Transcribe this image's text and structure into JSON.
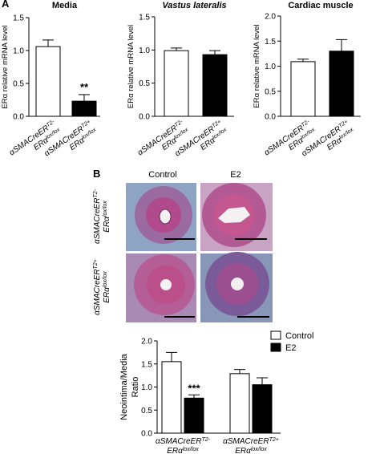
{
  "panel_labels": [
    "A",
    "B"
  ],
  "micrographs": {
    "columns": [
      "Control",
      "E2"
    ],
    "rows": [
      {
        "line1": "αSMACreER",
        "sup1": "T2-",
        "line2": "ERα",
        "sup2": "lox/lox"
      },
      {
        "line1": "αSMACreER",
        "sup1": "T2+",
        "line2": "ERα",
        "sup2": "lox/lox"
      }
    ]
  },
  "chart_data": [
    {
      "type": "bar",
      "title": "Media",
      "y_label": "ERα relative mRNA level",
      "categories": [
        {
          "line1": "αSMACreER",
          "sup1": "T2-",
          "line2": "ERα",
          "sup2": "lox/lox"
        },
        {
          "line1": "αSMACreER",
          "sup1": "T2+",
          "line2": "ERα",
          "sup2": "lox/lox"
        }
      ],
      "values": [
        1.06,
        0.23
      ],
      "errors": [
        0.1,
        0.1
      ],
      "colors": [
        "#ffffff",
        "#000000"
      ],
      "annotation": "**",
      "ylim": [
        0,
        1.5
      ],
      "yticks": [
        {
          "value": 0,
          "label": "0.0"
        },
        0.5,
        {
          "value": 1,
          "label": "1.0"
        },
        1.5
      ]
    },
    {
      "type": "bar",
      "title": "Vastus lateralis",
      "y_label": "ERα relative mRNA level",
      "categories": [
        {
          "line1": "αSMACreER",
          "sup1": "T2-",
          "line2": "ERα",
          "sup2": "lox/lox"
        },
        {
          "line1": "αSMACreER",
          "sup1": "T2+",
          "line2": "ERα",
          "sup2": "lox/lox"
        }
      ],
      "values": [
        0.99,
        0.93
      ],
      "errors": [
        0.04,
        0.06
      ],
      "colors": [
        "#ffffff",
        "#000000"
      ],
      "ylim": [
        0,
        1.5
      ],
      "yticks": [
        {
          "value": 0,
          "label": "0.0"
        },
        0.5,
        {
          "value": 1,
          "label": "1.0"
        },
        1.5
      ]
    },
    {
      "type": "bar",
      "title": "Cardiac muscle",
      "y_label": "ERα relative mRNA level",
      "categories": [
        {
          "line1": "αSMACreER",
          "sup1": "T2-",
          "line2": "ERα",
          "sup2": "lox/lox"
        },
        {
          "line1": "αSMACreER",
          "sup1": "T2+",
          "line2": "ERα",
          "sup2": "lox/lox"
        }
      ],
      "values": [
        1.09,
        1.3
      ],
      "errors": [
        0.05,
        0.23
      ],
      "colors": [
        "#ffffff",
        "#000000"
      ],
      "ylim": [
        0,
        2
      ],
      "yticks": [
        {
          "value": 0,
          "label": "0.0"
        },
        0.5,
        {
          "value": 1,
          "label": "1.0"
        },
        1.5,
        {
          "value": 2,
          "label": "2.0"
        }
      ]
    },
    {
      "type": "grouped_bar",
      "y_label": [
        "Neointima/Media",
        "Ratio"
      ],
      "categories": [
        {
          "line1": "αSMACreER",
          "sup1": "T2-",
          "line2": "ERα",
          "sup2": "lox/lox"
        },
        {
          "line1": "αSMACreER",
          "sup1": "T2+",
          "line2": "ERα",
          "sup2": "lox/lox"
        }
      ],
      "series": [
        {
          "name": "Control",
          "color": "#ffffff",
          "values": [
            1.55,
            1.29
          ],
          "errors": [
            0.2,
            0.09
          ]
        },
        {
          "name": "E2",
          "color": "#000000",
          "values": [
            0.76,
            1.05
          ],
          "errors": [
            0.07,
            0.15
          ]
        }
      ],
      "annotation": "***",
      "legend": "top-right",
      "ylim": [
        0,
        2
      ],
      "yticks": [
        {
          "value": 0,
          "label": "0.0"
        },
        0.5,
        {
          "value": 1,
          "label": "1.0"
        },
        1.5,
        {
          "value": 2,
          "label": "2.0"
        }
      ]
    }
  ]
}
